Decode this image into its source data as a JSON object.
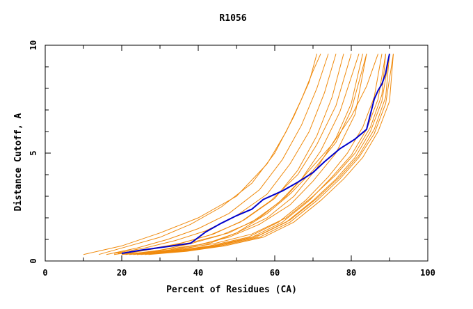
{
  "chart_data": {
    "type": "line",
    "title": "R1056",
    "xlabel": "Percent of Residues (CA)",
    "ylabel": "Distance Cutoff, A",
    "xlim": [
      0,
      100
    ],
    "ylim": [
      0,
      10
    ],
    "x_ticks": [
      "0",
      "20",
      "40",
      "60",
      "80",
      "100"
    ],
    "y_ticks": [
      "0",
      "5",
      "10"
    ],
    "grid": false,
    "legend": "none",
    "colors": {
      "highlight": "#0000cc",
      "others": "#f08a0c",
      "axes": "#000000"
    },
    "highlight_series": {
      "x": [
        20,
        25,
        30,
        34,
        38,
        42,
        46,
        50,
        54,
        57,
        62,
        66,
        70,
        73,
        77,
        81,
        84,
        85,
        86,
        87,
        88,
        89,
        89.5,
        90
      ],
      "y": [
        0.35,
        0.5,
        0.62,
        0.72,
        0.82,
        1.35,
        1.75,
        2.1,
        2.4,
        2.85,
        3.25,
        3.65,
        4.1,
        4.6,
        5.2,
        5.65,
        6.1,
        6.8,
        7.5,
        7.9,
        8.2,
        8.7,
        9.2,
        9.6
      ],
      "name": ""
    },
    "other_series": [
      {
        "x": [
          10,
          20,
          30,
          40,
          50,
          58,
          63,
          67,
          70,
          72
        ],
        "y": [
          0.3,
          0.7,
          1.3,
          2.0,
          3.0,
          4.5,
          6.0,
          7.5,
          8.8,
          9.6
        ]
      },
      {
        "x": [
          14,
          22,
          30,
          38,
          46,
          54,
          60,
          65,
          69,
          71
        ],
        "y": [
          0.3,
          0.7,
          1.1,
          1.7,
          2.5,
          3.6,
          5.0,
          6.7,
          8.3,
          9.6
        ]
      },
      {
        "x": [
          16,
          24,
          32,
          40,
          48,
          56,
          62,
          67,
          71,
          74
        ],
        "y": [
          0.3,
          0.6,
          1.0,
          1.5,
          2.2,
          3.3,
          4.7,
          6.3,
          8.0,
          9.6
        ]
      },
      {
        "x": [
          18,
          26,
          34,
          42,
          50,
          58,
          64,
          69,
          73,
          76
        ],
        "y": [
          0.35,
          0.6,
          0.95,
          1.4,
          2.1,
          3.1,
          4.5,
          6.0,
          7.8,
          9.6
        ]
      },
      {
        "x": [
          20,
          28,
          36,
          44,
          52,
          60,
          66,
          71,
          75,
          78
        ],
        "y": [
          0.3,
          0.55,
          0.85,
          1.25,
          1.9,
          2.9,
          4.2,
          5.8,
          7.6,
          9.6
        ]
      },
      {
        "x": [
          19,
          27,
          35,
          43,
          51,
          59,
          66,
          71,
          76,
          80
        ],
        "y": [
          0.35,
          0.55,
          0.8,
          1.2,
          1.8,
          2.8,
          4.0,
          5.4,
          7.2,
          9.6
        ]
      },
      {
        "x": [
          21,
          30,
          38,
          46,
          54,
          61,
          67,
          72,
          77,
          82
        ],
        "y": [
          0.3,
          0.5,
          0.8,
          1.2,
          1.8,
          2.7,
          3.8,
          5.1,
          6.9,
          9.6
        ]
      },
      {
        "x": [
          22,
          30,
          40,
          48,
          56,
          64,
          70,
          76,
          81,
          84
        ],
        "y": [
          0.3,
          0.5,
          0.75,
          1.1,
          1.7,
          2.6,
          3.7,
          5.0,
          6.8,
          9.6
        ]
      },
      {
        "x": [
          24,
          34,
          42,
          50,
          58,
          64,
          70,
          76,
          80,
          84
        ],
        "y": [
          0.3,
          0.5,
          0.75,
          1.3,
          2.2,
          3.1,
          4.2,
          5.5,
          7.0,
          9.6
        ]
      },
      {
        "x": [
          20,
          32,
          42,
          50,
          58,
          65,
          71,
          76,
          80,
          83
        ],
        "y": [
          0.3,
          0.5,
          0.8,
          1.3,
          2.0,
          3.0,
          4.3,
          5.7,
          7.3,
          9.6
        ]
      },
      {
        "x": [
          23,
          33,
          43,
          53,
          61,
          68,
          74,
          79,
          83,
          86,
          88
        ],
        "y": [
          0.3,
          0.45,
          0.7,
          1.1,
          1.8,
          2.8,
          3.9,
          5.0,
          6.2,
          7.6,
          9.6
        ]
      },
      {
        "x": [
          24,
          34,
          44,
          54,
          62,
          69,
          75,
          80,
          84,
          87,
          89
        ],
        "y": [
          0.3,
          0.45,
          0.7,
          1.1,
          1.8,
          2.8,
          3.9,
          4.9,
          6.1,
          7.5,
          9.6
        ]
      },
      {
        "x": [
          25,
          35,
          45,
          55,
          63,
          70,
          76,
          81,
          85,
          88,
          90
        ],
        "y": [
          0.3,
          0.45,
          0.7,
          1.1,
          1.8,
          2.8,
          3.8,
          4.8,
          6.0,
          7.4,
          9.6
        ]
      },
      {
        "x": [
          26,
          36,
          46,
          56,
          64,
          71,
          77,
          82,
          86,
          89,
          91
        ],
        "y": [
          0.3,
          0.45,
          0.7,
          1.1,
          1.8,
          2.8,
          3.8,
          4.8,
          5.9,
          7.3,
          9.6
        ]
      },
      {
        "x": [
          27,
          37,
          47,
          57,
          65,
          72,
          78,
          83,
          87,
          90,
          91
        ],
        "y": [
          0.3,
          0.45,
          0.7,
          1.1,
          1.8,
          2.8,
          3.8,
          4.8,
          6.0,
          7.4,
          9.6
        ]
      },
      {
        "x": [
          24,
          35,
          46,
          56,
          64,
          71,
          77,
          82,
          86,
          89,
          90
        ],
        "y": [
          0.3,
          0.5,
          0.75,
          1.2,
          1.9,
          2.9,
          3.9,
          4.9,
          6.1,
          7.6,
          9.6
        ]
      },
      {
        "x": [
          22,
          33,
          44,
          54,
          63,
          70,
          76,
          81,
          85,
          88,
          89
        ],
        "y": [
          0.3,
          0.5,
          0.8,
          1.25,
          2.0,
          3.0,
          4.0,
          5.0,
          6.2,
          7.7,
          9.6
        ]
      },
      {
        "x": [
          18,
          28,
          38,
          48,
          56,
          63,
          69,
          75,
          80,
          84,
          87
        ],
        "y": [
          0.3,
          0.55,
          0.85,
          1.3,
          2.0,
          3.0,
          4.2,
          5.4,
          6.7,
          8.1,
          9.6
        ]
      }
    ]
  }
}
